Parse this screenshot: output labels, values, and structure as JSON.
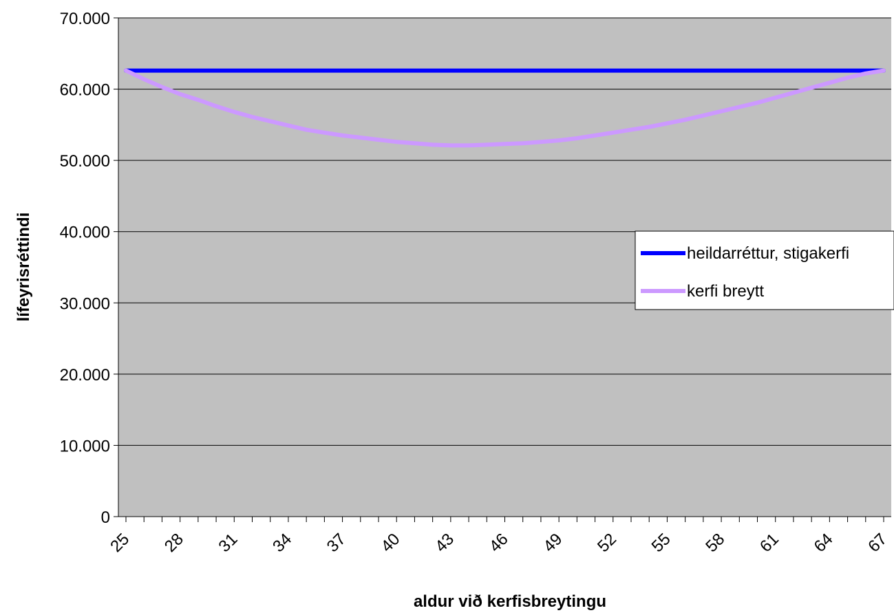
{
  "chart_data": {
    "type": "line",
    "xlabel": "aldur við kerfisbreytingu",
    "ylabel": "lífeyrisréttindi",
    "ylim": [
      0,
      70000
    ],
    "y_ticks": [
      0,
      10000,
      20000,
      30000,
      40000,
      50000,
      60000,
      70000
    ],
    "y_tick_labels": [
      "0",
      "10.000",
      "20.000",
      "30.000",
      "40.000",
      "50.000",
      "60.000",
      "70.000"
    ],
    "x": [
      25,
      26,
      27,
      28,
      29,
      30,
      31,
      32,
      33,
      34,
      35,
      36,
      37,
      38,
      39,
      40,
      41,
      42,
      43,
      44,
      45,
      46,
      47,
      48,
      49,
      50,
      51,
      52,
      53,
      54,
      55,
      56,
      57,
      58,
      59,
      60,
      61,
      62,
      63,
      64,
      65,
      66,
      67
    ],
    "x_tick_labels": [
      "25",
      "28",
      "31",
      "34",
      "37",
      "40",
      "43",
      "46",
      "49",
      "52",
      "55",
      "58",
      "61",
      "64",
      "67"
    ],
    "plot_background": "#c0c0c0",
    "grid": "horizontal",
    "legend_position": "right",
    "series": [
      {
        "name": "heildarréttur, stigakerfi",
        "color": "#0000ff",
        "values": [
          62600,
          62600,
          62600,
          62600,
          62600,
          62600,
          62600,
          62600,
          62600,
          62600,
          62600,
          62600,
          62600,
          62600,
          62600,
          62600,
          62600,
          62600,
          62600,
          62600,
          62600,
          62600,
          62600,
          62600,
          62600,
          62600,
          62600,
          62600,
          62600,
          62600,
          62600,
          62600,
          62600,
          62600,
          62600,
          62600,
          62600,
          62600,
          62600,
          62600,
          62600,
          62600,
          62600
        ]
      },
      {
        "name": "kerfi breytt",
        "color": "#cc99ff",
        "values": [
          62600,
          61400,
          60300,
          59300,
          58500,
          57600,
          56800,
          56100,
          55500,
          54900,
          54300,
          53900,
          53500,
          53200,
          52900,
          52600,
          52400,
          52200,
          52100,
          52100,
          52200,
          52300,
          52400,
          52600,
          52800,
          53100,
          53500,
          53900,
          54300,
          54700,
          55200,
          55700,
          56300,
          56900,
          57500,
          58100,
          58800,
          59500,
          60200,
          60900,
          61600,
          62200,
          62600
        ]
      }
    ]
  }
}
